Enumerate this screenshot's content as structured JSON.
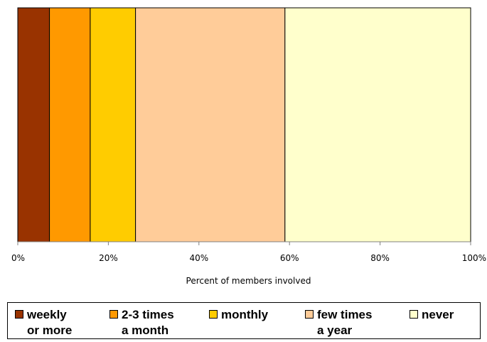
{
  "chart_data": {
    "type": "bar",
    "orientation": "horizontal",
    "stacked": "100%",
    "categories": [
      ""
    ],
    "series": [
      {
        "name": "weekly or more",
        "values": [
          7
        ],
        "color": "#993300"
      },
      {
        "name": "2-3 times a month",
        "values": [
          9
        ],
        "color": "#ff9900"
      },
      {
        "name": "monthly",
        "values": [
          10
        ],
        "color": "#ffcc00"
      },
      {
        "name": "few times a year",
        "values": [
          33
        ],
        "color": "#ffcc99"
      },
      {
        "name": "never",
        "values": [
          41
        ],
        "color": "#ffffcc"
      }
    ],
    "xlabel": "Percent of members involved",
    "xlim": [
      0,
      100
    ],
    "xticks": [
      0,
      20,
      40,
      60,
      80,
      100
    ],
    "xtick_labels": [
      "0%",
      "20%",
      "40%",
      "60%",
      "80%",
      "100%"
    ],
    "legend_position": "bottom",
    "grid": false
  },
  "legend": {
    "items": [
      {
        "lines": [
          "weekly",
          "or more"
        ],
        "color": "#993300"
      },
      {
        "lines": [
          "2-3 times",
          "a month"
        ],
        "color": "#ff9900"
      },
      {
        "lines": [
          "monthly"
        ],
        "color": "#ffcc00"
      },
      {
        "lines": [
          "few times",
          "a year"
        ],
        "color": "#ffcc99"
      },
      {
        "lines": [
          "never"
        ],
        "color": "#ffffcc"
      }
    ]
  }
}
